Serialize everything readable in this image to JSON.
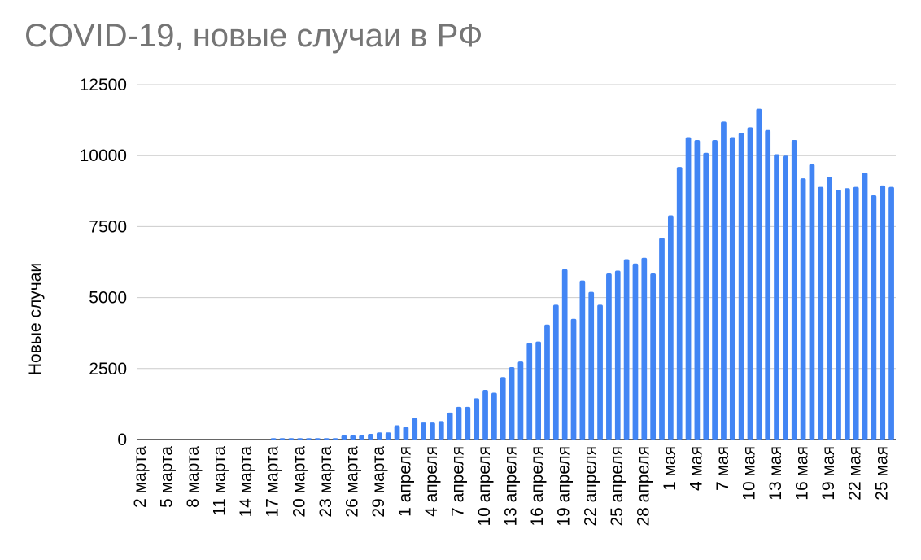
{
  "chart_data": {
    "type": "bar",
    "title": "COVID-19, новые случаи в РФ",
    "xlabel": "",
    "ylabel": "Новые случаи",
    "ylim": [
      0,
      12500
    ],
    "yticks": [
      0,
      2500,
      5000,
      7500,
      10000,
      12500
    ],
    "grid": true,
    "legend": "none",
    "bar_color": "#4285f4",
    "categories": [
      "2 марта",
      "3 марта",
      "4 марта",
      "5 марта",
      "6 марта",
      "7 марта",
      "8 марта",
      "9 марта",
      "10 марта",
      "11 марта",
      "12 марта",
      "13 марта",
      "14 марта",
      "15 марта",
      "16 марта",
      "17 марта",
      "18 марта",
      "19 марта",
      "20 марта",
      "21 марта",
      "22 марта",
      "23 марта",
      "24 марта",
      "25 марта",
      "26 марта",
      "27 марта",
      "28 марта",
      "29 марта",
      "30 марта",
      "31 марта",
      "1 апреля",
      "2 апреля",
      "3 апреля",
      "4 апреля",
      "5 апреля",
      "6 апреля",
      "7 апреля",
      "8 апреля",
      "9 апреля",
      "10 апреля",
      "11 апреля",
      "12 апреля",
      "13 апреля",
      "14 апреля",
      "15 апреля",
      "16 апреля",
      "17 апреля",
      "18 апреля",
      "19 апреля",
      "20 апреля",
      "21 апреля",
      "22 апреля",
      "23 апреля",
      "24 апреля",
      "25 апреля",
      "26 апреля",
      "27 апреля",
      "28 апреля",
      "29 апреля",
      "30 апреля",
      "1 мая",
      "2 мая",
      "3 мая",
      "4 мая",
      "5 мая",
      "6 мая",
      "7 мая",
      "8 мая",
      "9 мая",
      "10 мая",
      "11 мая",
      "12 мая",
      "13 мая",
      "14 мая",
      "15 мая",
      "16 мая",
      "17 мая",
      "18 мая",
      "19 мая",
      "20 мая",
      "21 мая",
      "22 мая",
      "23 мая",
      "24 мая",
      "25 мая",
      "26 мая"
    ],
    "values": [
      0,
      0,
      0,
      0,
      0,
      0,
      0,
      0,
      0,
      0,
      0,
      0,
      0,
      0,
      0,
      50,
      50,
      50,
      50,
      50,
      50,
      50,
      50,
      150,
      150,
      150,
      200,
      250,
      250,
      500,
      450,
      750,
      600,
      600,
      650,
      950,
      1150,
      1150,
      1450,
      1750,
      1650,
      2200,
      2550,
      2750,
      3400,
      3450,
      4050,
      4750,
      6000,
      4250,
      5600,
      5200,
      4750,
      5850,
      5950,
      6350,
      6200,
      6400,
      5850,
      7100,
      7900,
      9600,
      10650,
      10550,
      10100,
      10550,
      11200,
      10650,
      10800,
      11000,
      11650,
      10900,
      10050,
      10000,
      10550,
      9200,
      9700,
      8900,
      9250,
      8800,
      8850,
      8900,
      9400,
      8600,
      8950,
      8900
    ],
    "tick_labels": [
      "2 марта",
      "5 марта",
      "8 марта",
      "11 марта",
      "14 марта",
      "17 марта",
      "20 марта",
      "23 марта",
      "26 марта",
      "29 марта",
      "1 апреля",
      "4 апреля",
      "7 апреля",
      "10 апреля",
      "13 апреля",
      "16 апреля",
      "19 апреля",
      "22 апреля",
      "25 апреля",
      "28 апреля",
      "1 мая",
      "4 мая",
      "7 мая",
      "10 мая",
      "13 мая",
      "16 мая",
      "19 мая",
      "22 мая",
      "25 мая"
    ]
  }
}
